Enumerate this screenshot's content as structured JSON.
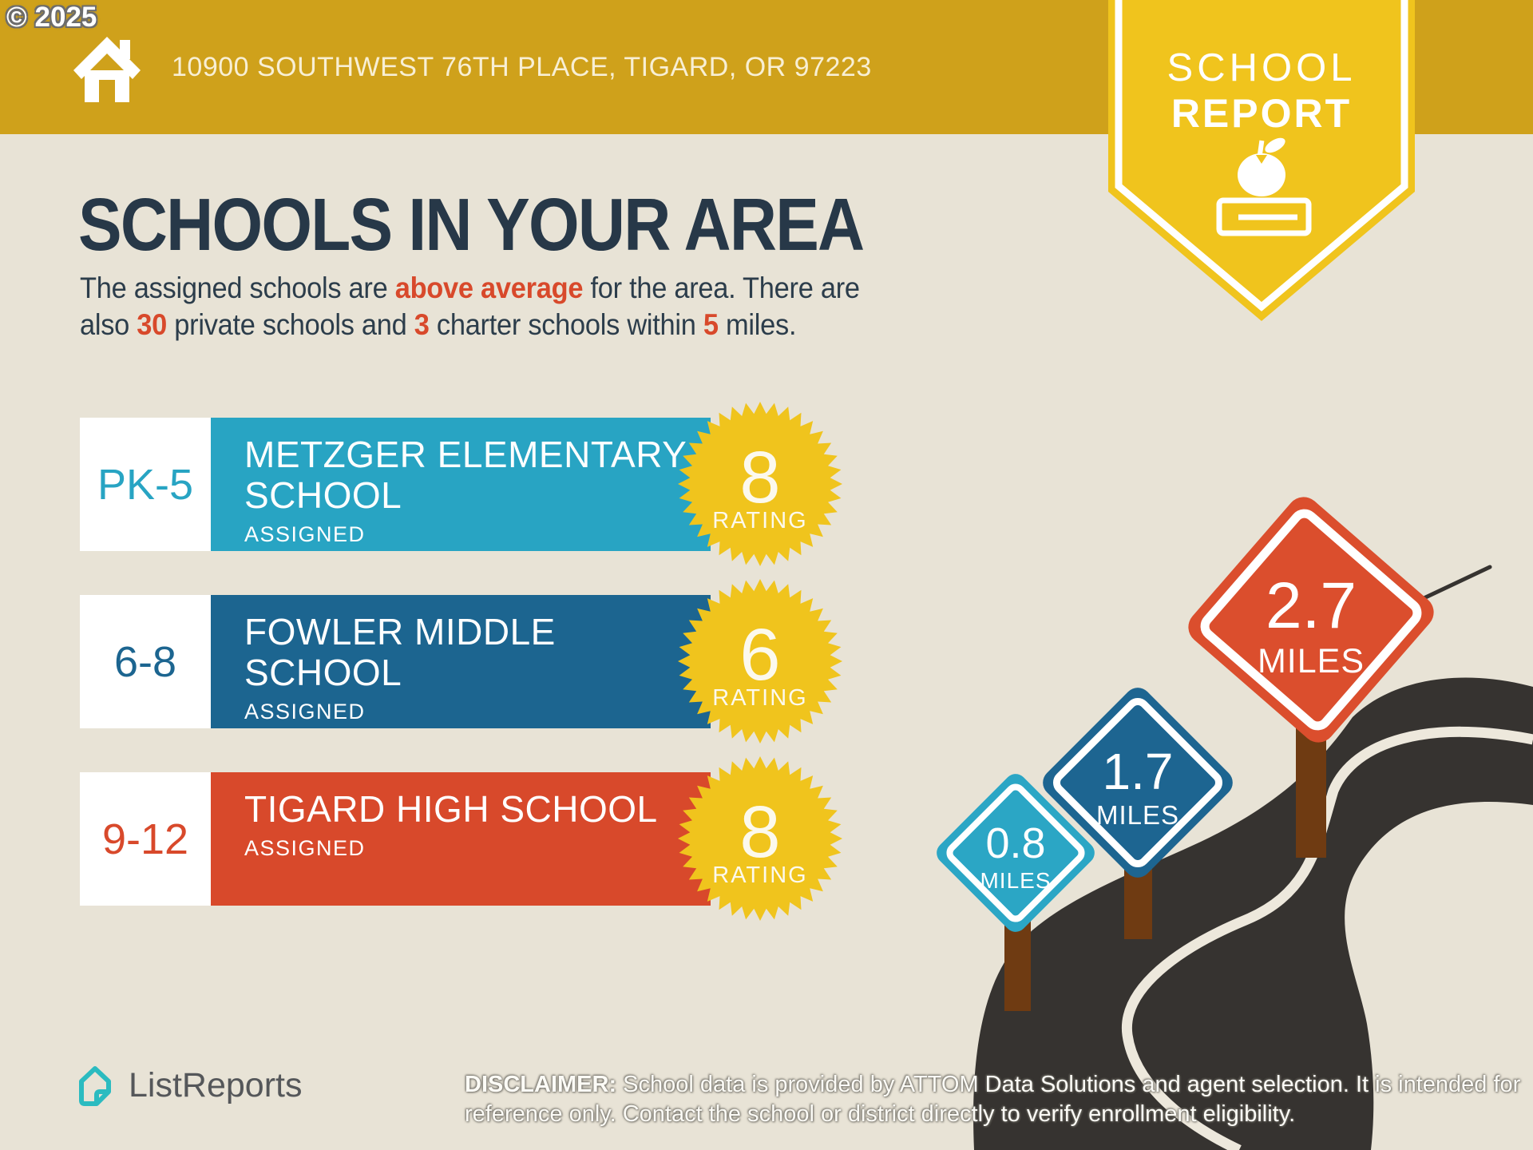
{
  "watermark": "© 2025",
  "header": {
    "address": "10900 SOUTHWEST 76TH PLACE, TIGARD, OR 97223",
    "badge": {
      "line1": "SCHOOL",
      "line2": "REPORT"
    }
  },
  "title": "SCHOOLS IN YOUR AREA",
  "intro": {
    "s1": "The assigned schools are ",
    "s2": "above average",
    "s3": " for the area. There are",
    "s4": "also ",
    "s5": "30",
    "s6": " private schools and ",
    "s7": "3",
    "s8": " charter schools within ",
    "s9": "5",
    "s10": " miles."
  },
  "schools": [
    {
      "grade": "PK-5",
      "name_line1": "METZGER ELEMENTARY",
      "name_line2": "SCHOOL",
      "status": "ASSIGNED",
      "rating": "8",
      "rating_label": "RATING",
      "color": "#28A4C3"
    },
    {
      "grade": "6-8",
      "name_line1": "FOWLER MIDDLE",
      "name_line2": "SCHOOL",
      "status": "ASSIGNED",
      "rating": "6",
      "rating_label": "RATING",
      "color": "#1C6590"
    },
    {
      "grade": "9-12",
      "name_line1": "TIGARD HIGH SCHOOL",
      "name_line2": "",
      "status": "ASSIGNED",
      "rating": "8",
      "rating_label": "RATING",
      "color": "#D8492B"
    }
  ],
  "signs": [
    {
      "value": "0.8",
      "unit": "MILES",
      "color": "#2BA6C5"
    },
    {
      "value": "1.7",
      "unit": "MILES",
      "color": "#1D6591"
    },
    {
      "value": "2.7",
      "unit": "MILES",
      "color": "#DB4E2D"
    }
  ],
  "footer": {
    "logo_text": "ListReports",
    "disclaimer_label": "DISCLAIMER:",
    "disclaimer_text": " School data is provided by ATTOM Data Solutions and agent selection. It is intended for reference only. Contact the school or district directly to verify enrollment eligibility."
  },
  "colors": {
    "background": "#E8E3D6",
    "banner_gold": "#CFA11B",
    "badge_yellow": "#F0C41D",
    "heading_navy": "#273848",
    "accent_red": "#D8492B",
    "elementary_teal": "#28A4C3",
    "middle_blue": "#1C6590",
    "high_red": "#D8492B",
    "road_charcoal": "#363330",
    "post_brown": "#6F3B12"
  }
}
